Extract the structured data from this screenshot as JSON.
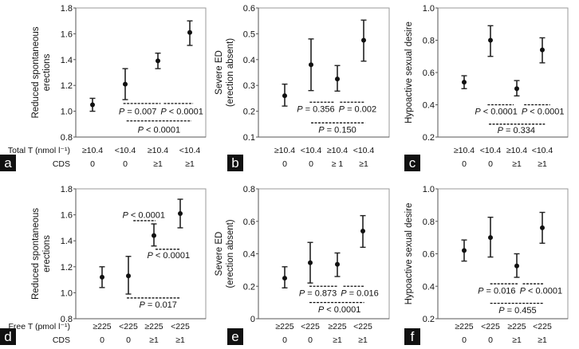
{
  "row_headers": {
    "top": {
      "group": "Total T (nmol l⁻¹)",
      "cds": "CDS"
    },
    "bottom": {
      "group": "Free T (pmol l⁻¹)",
      "cds": "CDS"
    }
  },
  "chart_data": [
    {
      "panel": "a",
      "type": "scatter",
      "error_bars": true,
      "ylabel": [
        "Reduced spontaneous",
        "erections"
      ],
      "ylim": [
        0.8,
        1.8
      ],
      "yticks": [
        "0.8",
        "1.0",
        "1.2",
        "1.4",
        "1.6",
        "1.8"
      ],
      "categories": [
        [
          "≥10.4",
          "0"
        ],
        [
          "<10.4",
          "0"
        ],
        [
          "≥10.4",
          "≥1"
        ],
        [
          "<10.4",
          "≥1"
        ]
      ],
      "values": [
        1.05,
        1.21,
        1.39,
        1.61
      ],
      "lower": [
        1.0,
        1.09,
        1.33,
        1.51
      ],
      "upper": [
        1.1,
        1.33,
        1.45,
        1.7
      ],
      "annotations": [
        {
          "text": "P = 0.007",
          "line_y": 1.06,
          "from": 0.95,
          "to": 2.1,
          "text_y": 1.0,
          "text_x": 1.5
        },
        {
          "text": "P < 0.0001",
          "line_y": 1.06,
          "from": 2.2,
          "to": 3.1,
          "text_y": 1.0,
          "text_x": 2.65
        },
        {
          "text": "P < 0.0001",
          "line_y": 0.925,
          "from": 1.05,
          "to": 3.05,
          "text_y": 0.86,
          "text_x": 2.05
        }
      ]
    },
    {
      "panel": "b",
      "type": "scatter",
      "error_bars": true,
      "ylabel": [
        "Severe ED",
        "(erection absent)"
      ],
      "ylim": [
        0.1,
        0.6
      ],
      "yticks": [
        "0.1",
        "0.2",
        "0.3",
        "0.4",
        "0.5",
        "0.6"
      ],
      "categories": [
        [
          "≥10.4",
          "0"
        ],
        [
          "<10.4",
          "0"
        ],
        [
          "≥10.4",
          "≥ 1"
        ],
        [
          "<10.4",
          "≥1"
        ]
      ],
      "values": [
        0.26,
        0.38,
        0.325,
        0.475
      ],
      "lower": [
        0.22,
        0.28,
        0.278,
        0.394
      ],
      "upper": [
        0.305,
        0.48,
        0.377,
        0.553
      ],
      "annotations": [
        {
          "text": "P = 0.356",
          "line_y": 0.235,
          "from": 0.95,
          "to": 1.9,
          "text_y": 0.21,
          "text_x": 1.35
        },
        {
          "text": "P = 0.002",
          "line_y": 0.235,
          "from": 2.1,
          "to": 3.05,
          "text_y": 0.21,
          "text_x": 2.6
        },
        {
          "text": "P = 0.150",
          "line_y": 0.155,
          "from": 1.0,
          "to": 3.05,
          "text_y": 0.13,
          "text_x": 2.0
        }
      ]
    },
    {
      "panel": "c",
      "type": "scatter",
      "error_bars": true,
      "ylabel": [
        "Hypoactive sexual desire"
      ],
      "ylim": [
        0.2,
        1.0
      ],
      "yticks": [
        "0.2",
        "0.4",
        "0.6",
        "0.8",
        "1.0"
      ],
      "categories": [
        [
          "≥10.4",
          "0"
        ],
        [
          "<10.4",
          "0"
        ],
        [
          "≥10.4",
          "≥1"
        ],
        [
          "<10.4",
          "≥1"
        ]
      ],
      "values": [
        0.54,
        0.8,
        0.5,
        0.74
      ],
      "lower": [
        0.5,
        0.7,
        0.455,
        0.66
      ],
      "upper": [
        0.58,
        0.89,
        0.55,
        0.815
      ],
      "annotations": [
        {
          "text": "P < 0.0001",
          "line_y": 0.4,
          "from": 0.9,
          "to": 1.9,
          "text_y": 0.36,
          "text_x": 1.4
        },
        {
          "text": "P < 0.0001",
          "line_y": 0.4,
          "from": 2.3,
          "to": 3.3,
          "text_y": 0.36,
          "text_x": 2.85
        },
        {
          "text": "P = 0.334",
          "line_y": 0.28,
          "from": 0.95,
          "to": 3.1,
          "text_y": 0.245,
          "text_x": 2.0
        }
      ]
    },
    {
      "panel": "d",
      "type": "scatter",
      "error_bars": true,
      "ylabel": [
        "Reduced spontaneous",
        "erections"
      ],
      "ylim": [
        0.8,
        1.8
      ],
      "yticks": [
        "0.8",
        "1.0",
        "1.2",
        "1.4",
        "1.6",
        "1.8"
      ],
      "categories": [
        [
          "≥225",
          "0"
        ],
        [
          "<225",
          "0"
        ],
        [
          "≥225",
          "≥1"
        ],
        [
          "<225",
          "≥1"
        ]
      ],
      "values": [
        1.12,
        1.13,
        1.44,
        1.61
      ],
      "lower": [
        1.04,
        0.99,
        1.36,
        1.5
      ],
      "upper": [
        1.2,
        1.28,
        1.53,
        1.72
      ],
      "annotations": [
        {
          "text": "P < 0.0001",
          "line_y": 1.555,
          "from": 1.2,
          "to": 2.05,
          "text_y": 1.6,
          "text_x": 1.6
        },
        {
          "text": "P < 0.0001",
          "line_y": 1.335,
          "from": 2.05,
          "to": 3.0,
          "text_y": 1.29,
          "text_x": 2.55
        },
        {
          "text": "P = 0.017",
          "line_y": 0.96,
          "from": 0.95,
          "to": 3.0,
          "text_y": 0.91,
          "text_x": 2.15
        }
      ]
    },
    {
      "panel": "e",
      "type": "scatter",
      "error_bars": true,
      "ylabel": [
        "Severe ED",
        "(erection absent)"
      ],
      "ylim": [
        0,
        0.8
      ],
      "yticks": [
        "0",
        "0.2",
        "0.4",
        "0.6",
        "0.8"
      ],
      "categories": [
        [
          "≥225",
          "0"
        ],
        [
          "<225",
          "0"
        ],
        [
          "≥225",
          "≥1"
        ],
        [
          "<225",
          "≥1"
        ]
      ],
      "values": [
        0.25,
        0.345,
        0.335,
        0.54
      ],
      "lower": [
        0.19,
        0.22,
        0.26,
        0.44
      ],
      "upper": [
        0.32,
        0.47,
        0.405,
        0.635
      ],
      "annotations": [
        {
          "text": "P = 0.873",
          "line_y": 0.2,
          "from": 0.95,
          "to": 2.05,
          "text_y": 0.16,
          "text_x": 1.45
        },
        {
          "text": "P = 0.016",
          "line_y": 0.2,
          "from": 2.25,
          "to": 3.05,
          "text_y": 0.16,
          "text_x": 2.7
        },
        {
          "text": "P < 0.0001",
          "line_y": 0.1,
          "from": 0.95,
          "to": 3.05,
          "text_y": 0.06,
          "text_x": 2.1
        }
      ]
    },
    {
      "panel": "f",
      "type": "scatter",
      "error_bars": true,
      "ylabel": [
        "Hypoactive sexual desire"
      ],
      "ylim": [
        0.2,
        1.0
      ],
      "yticks": [
        "0.2",
        "0.4",
        "0.6",
        "0.8",
        "1.0"
      ],
      "categories": [
        [
          "≥225",
          "0"
        ],
        [
          "<225",
          "0"
        ],
        [
          "≥225",
          "≥1"
        ],
        [
          "<225",
          "≥1"
        ]
      ],
      "values": [
        0.62,
        0.7,
        0.525,
        0.76
      ],
      "lower": [
        0.555,
        0.58,
        0.455,
        0.665
      ],
      "upper": [
        0.685,
        0.825,
        0.6,
        0.855
      ],
      "annotations": [
        {
          "text": "P = 0.016",
          "line_y": 0.415,
          "from": 1.0,
          "to": 2.05,
          "text_y": 0.375,
          "text_x": 1.45
        },
        {
          "text": "P < 0.0001",
          "line_y": 0.415,
          "from": 2.25,
          "to": 3.05,
          "text_y": 0.375,
          "text_x": 2.75
        },
        {
          "text": "P = 0.455",
          "line_y": 0.295,
          "from": 1.0,
          "to": 3.05,
          "text_y": 0.255,
          "text_x": 2.05
        }
      ]
    }
  ]
}
